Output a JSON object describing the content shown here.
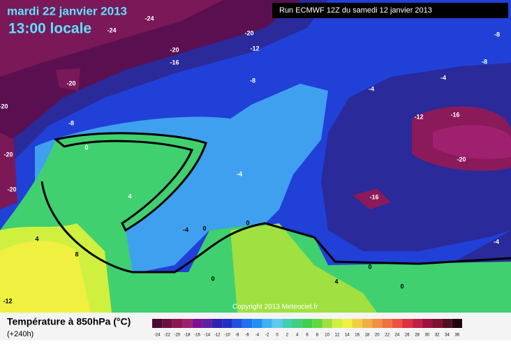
{
  "header": {
    "date": "mardi 22 janvier 2013",
    "time": "13:00 locale",
    "run": "Run ECMWF 12Z du samedi 12 janvier 2013"
  },
  "copyright": "Copyright 2013 Meteociel.fr",
  "legend": {
    "title": "Température à 850hPa (°C)",
    "lead": "(+240h)",
    "ticks": [
      -24,
      -22,
      -20,
      -18,
      -16,
      -14,
      -12,
      -10,
      -8,
      -6,
      -4,
      -2,
      0,
      2,
      4,
      6,
      8,
      10,
      12,
      14,
      16,
      18,
      20,
      22,
      24,
      26,
      28,
      30,
      32,
      34,
      36
    ],
    "colors": [
      "#4a0a30",
      "#6a1040",
      "#8a1850",
      "#a02070",
      "#801090",
      "#6020a0",
      "#3020b0",
      "#2030c0",
      "#2050e0",
      "#2070f0",
      "#2090f0",
      "#40b0f0",
      "#60c8f0",
      "#40d0b0",
      "#40d080",
      "#40d050",
      "#60d840",
      "#a0e040",
      "#d0f040",
      "#f0f040",
      "#f0d040",
      "#f0b040",
      "#f09040",
      "#f07040",
      "#f05040",
      "#e03040",
      "#c02040",
      "#a01040",
      "#801030",
      "#501020",
      "#200010"
    ]
  },
  "contour_labels": [
    -24,
    -24,
    -20,
    -20,
    -16,
    -12,
    -8,
    -20,
    -20,
    -20,
    -20,
    -8,
    -12,
    0,
    4,
    4,
    8,
    -4,
    -4,
    0,
    0,
    0,
    4,
    0,
    0,
    -4,
    -4,
    -8,
    -8,
    -12,
    -16,
    -20,
    -16,
    -4
  ]
}
